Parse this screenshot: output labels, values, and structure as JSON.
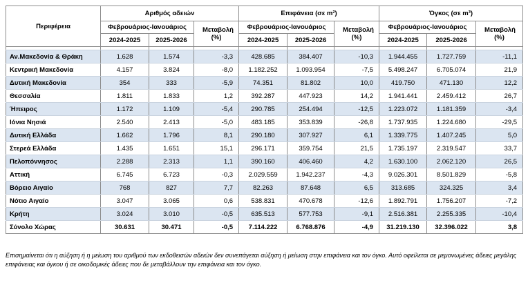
{
  "header": {
    "region": "Περιφέρεια",
    "groups": [
      {
        "title": "Αριθμός αδειών",
        "period": "Φεβρουάριος-Ιανουάριος",
        "change": "Μεταβολή (%)",
        "years": [
          "2024-2025",
          "2025-2026"
        ]
      },
      {
        "title": "Επιφάνεια (σε m²)",
        "period": "Φεβρουάριος-Ιανουάριος",
        "change": "Μεταβολή (%)",
        "years": [
          "2024-2025",
          "2025-2026"
        ]
      },
      {
        "title": "Όγκος (σε m³)",
        "period": "Φεβρουάριος-Ιανουάριος",
        "change": "Μεταβολή (%)",
        "years": [
          "2024-2025",
          "2025-2026"
        ]
      }
    ]
  },
  "table": {
    "rows": [
      [
        "Αν.Μακεδονία & Θράκη",
        "1.628",
        "1.574",
        "-3,3",
        "428.685",
        "384.407",
        "-10,3",
        "1.944.455",
        "1.727.759",
        "-11,1"
      ],
      [
        "Κεντρική Μακεδονία",
        "4.157",
        "3.824",
        "-8,0",
        "1.182.252",
        "1.093.954",
        "-7,5",
        "5.498.247",
        "6.705.074",
        "21,9"
      ],
      [
        "Δυτική Μακεδονία",
        "354",
        "333",
        "-5,9",
        "74.351",
        "81.802",
        "10,0",
        "419.750",
        "471.130",
        "12,2"
      ],
      [
        "Θεσσαλία",
        "1.811",
        "1.833",
        "1,2",
        "392.287",
        "447.923",
        "14,2",
        "1.941.441",
        "2.459.412",
        "26,7"
      ],
      [
        "Ήπειρος",
        "1.172",
        "1.109",
        "-5,4",
        "290.785",
        "254.494",
        "-12,5",
        "1.223.072",
        "1.181.359",
        "-3,4"
      ],
      [
        "Ιόνια Νησιά",
        "2.540",
        "2.413",
        "-5,0",
        "483.185",
        "353.839",
        "-26,8",
        "1.737.935",
        "1.224.680",
        "-29,5"
      ],
      [
        "Δυτική Ελλάδα",
        "1.662",
        "1.796",
        "8,1",
        "290.180",
        "307.927",
        "6,1",
        "1.339.775",
        "1.407.245",
        "5,0"
      ],
      [
        "Στερεά Ελλάδα",
        "1.435",
        "1.651",
        "15,1",
        "296.171",
        "359.754",
        "21,5",
        "1.735.197",
        "2.319.547",
        "33,7"
      ],
      [
        "Πελοπόννησος",
        "2.288",
        "2.313",
        "1,1",
        "390.160",
        "406.460",
        "4,2",
        "1.630.100",
        "2.062.120",
        "26,5"
      ],
      [
        "Αττική",
        "6.745",
        "6.723",
        "-0,3",
        "2.029.559",
        "1.942.237",
        "-4,3",
        "9.026.301",
        "8.501.829",
        "-5,8"
      ],
      [
        "Βόρειο Αιγαίο",
        "768",
        "827",
        "7,7",
        "82.263",
        "87.648",
        "6,5",
        "313.685",
        "324.325",
        "3,4"
      ],
      [
        "Νότιο Αιγαίο",
        "3.047",
        "3.065",
        "0,6",
        "538.831",
        "470.678",
        "-12,6",
        "1.892.791",
        "1.756.207",
        "-7,2"
      ],
      [
        "Κρήτη",
        "3.024",
        "3.010",
        "-0,5",
        "635.513",
        "577.753",
        "-9,1",
        "2.516.381",
        "2.255.335",
        "-10,4"
      ],
      [
        "Σύνολο Χώρας",
        "30.631",
        "30.471",
        "-0,5",
        "7.114.222",
        "6.768.876",
        "-4,9",
        "31.219.130",
        "32.396.022",
        "3,8"
      ]
    ]
  },
  "footnote": "Επισημαίνεται ότι η αύξηση ή η μείωση του αριθμού των εκδοθεισών αδειών δεν συνεπάγεται αύξηση ή μείωση στην επιφάνεια και τον όγκο. Αυτό οφείλεται σε μεμονωμένες άδειες μεγάλης επιφάνειας και όγκου ή σε οικοδομικές άδειες που δε μεταβάλλουν την επιφάνεια και τον όγκο."
}
